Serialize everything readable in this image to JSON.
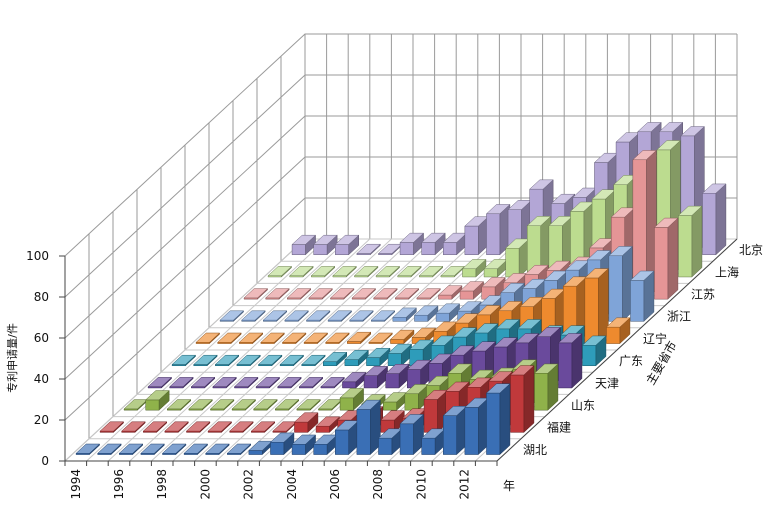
{
  "chart_data": {
    "type": "bar",
    "subtype": "3d-column",
    "title": "",
    "ylabel": "专利申请量/件",
    "xlabel": "年",
    "zlabel": "主要省市",
    "ylim": [
      0,
      100
    ],
    "yticks": [
      0,
      20,
      40,
      60,
      80,
      100
    ],
    "grid": true,
    "legend": "none",
    "years": [
      1994,
      1995,
      1996,
      1997,
      1998,
      1999,
      2000,
      2001,
      2002,
      2003,
      2004,
      2005,
      2006,
      2007,
      2008,
      2009,
      2010,
      2011,
      2012,
      2013
    ],
    "x_tick_labels": [
      "1994",
      "1996",
      "1998",
      "2000",
      "2002",
      "2004",
      "2006",
      "2008",
      "2010",
      "2012"
    ],
    "series": [
      {
        "name": "湖北",
        "color": "#3a6fb5",
        "values": [
          0,
          0,
          0,
          0,
          0,
          0,
          0,
          0,
          2,
          6,
          5,
          5,
          12,
          22,
          8,
          15,
          8,
          19,
          23,
          30
        ]
      },
      {
        "name": "福建",
        "color": "#c0393b",
        "values": [
          0,
          0,
          0,
          0,
          0,
          0,
          0,
          0,
          0,
          5,
          3,
          6,
          8,
          6,
          7,
          16,
          20,
          22,
          25,
          28
        ]
      },
      {
        "name": "山东",
        "color": "#8fb24a",
        "values": [
          0,
          5,
          0,
          0,
          0,
          0,
          0,
          0,
          0,
          0,
          6,
          3,
          4,
          8,
          12,
          18,
          15,
          16,
          20,
          18
        ]
      },
      {
        "name": "天津",
        "color": "#6a4a9c",
        "values": [
          0,
          0,
          0,
          0,
          0,
          0,
          0,
          0,
          0,
          3,
          6,
          7,
          9,
          12,
          16,
          18,
          20,
          22,
          25,
          22
        ]
      },
      {
        "name": "广东",
        "color": "#2e9cba",
        "values": [
          0,
          0,
          0,
          0,
          0,
          0,
          0,
          2,
          3,
          4,
          6,
          8,
          10,
          14,
          16,
          18,
          18,
          15,
          15,
          10
        ]
      },
      {
        "name": "辽宁",
        "color": "#ee8a2e",
        "values": [
          0,
          0,
          0,
          0,
          0,
          0,
          0,
          1,
          0,
          2,
          3,
          6,
          10,
          14,
          16,
          18,
          22,
          28,
          32,
          8
        ]
      },
      {
        "name": "浙江",
        "color": "#7fa4d8",
        "values": [
          0,
          0,
          0,
          0,
          0,
          0,
          0,
          0,
          2,
          3,
          4,
          5,
          8,
          14,
          16,
          20,
          25,
          30,
          32,
          20
        ]
      },
      {
        "name": "江苏",
        "color": "#e59596",
        "values": [
          0,
          0,
          0,
          0,
          0,
          0,
          0,
          0,
          0,
          2,
          4,
          6,
          8,
          12,
          14,
          16,
          25,
          40,
          68,
          35
        ]
      },
      {
        "name": "上海",
        "color": "#bcdc8f",
        "values": [
          0,
          0,
          0,
          0,
          0,
          0,
          0,
          0,
          0,
          4,
          4,
          14,
          25,
          25,
          32,
          38,
          45,
          55,
          62,
          30
        ]
      },
      {
        "name": "北京",
        "color": "#b3a6d6",
        "values": [
          5,
          5,
          5,
          0,
          0,
          6,
          6,
          6,
          14,
          20,
          22,
          32,
          25,
          28,
          45,
          55,
          60,
          60,
          58,
          30
        ]
      }
    ]
  }
}
